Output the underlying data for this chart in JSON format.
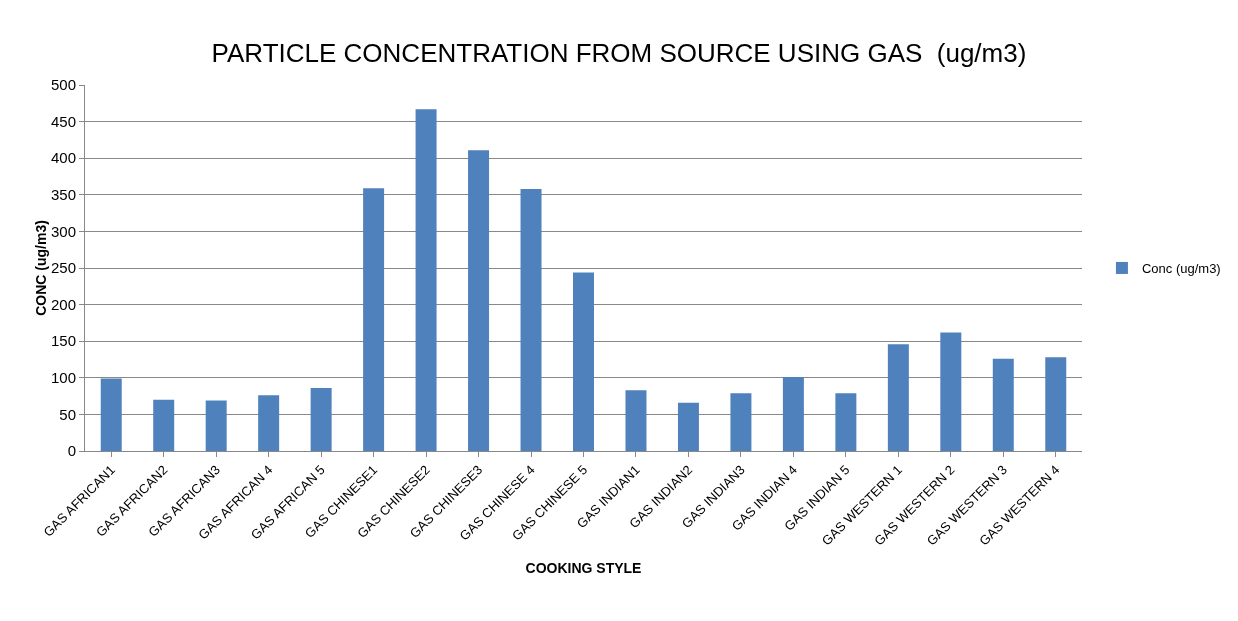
{
  "chart_data": {
    "type": "bar",
    "title": "PARTICLE CONCENTRATION FROM SOURCE USING GAS  (ug/m3)",
    "xlabel": "COOKING STYLE",
    "ylabel": "CONC (ug/m3)",
    "categories": [
      "GAS AFRICAN1",
      "GAS AFRICAN2",
      "GAS AFRICAN3",
      "GAS AFRICAN 4",
      "GAS AFRICAN 5",
      "GAS CHINESE1",
      "GAS CHINESE2",
      "GAS CHINESE3",
      "GAS CHINESE 4",
      "GAS CHINESE 5",
      "GAS INDIAN1",
      "GAS INDIAN2",
      "GAS INDIAN3",
      "GAS INDIAN 4",
      "GAS INDIAN 5",
      "GAS WESTERN 1",
      "GAS WESTERN 2",
      "GAS WESTERN 3",
      "GAS WESTERN 4"
    ],
    "series": [
      {
        "name": "Conc (ug/m3)",
        "color": "#4f81bd",
        "values": [
          99,
          70,
          69,
          76,
          86,
          359,
          467,
          411,
          358,
          244,
          83,
          66,
          79,
          101,
          79,
          146,
          162,
          126,
          128
        ]
      }
    ],
    "ylim": [
      0,
      500
    ],
    "yticks": [
      0,
      50,
      100,
      150,
      200,
      250,
      300,
      350,
      400,
      450,
      500
    ],
    "grid": "y",
    "legend": "right"
  }
}
